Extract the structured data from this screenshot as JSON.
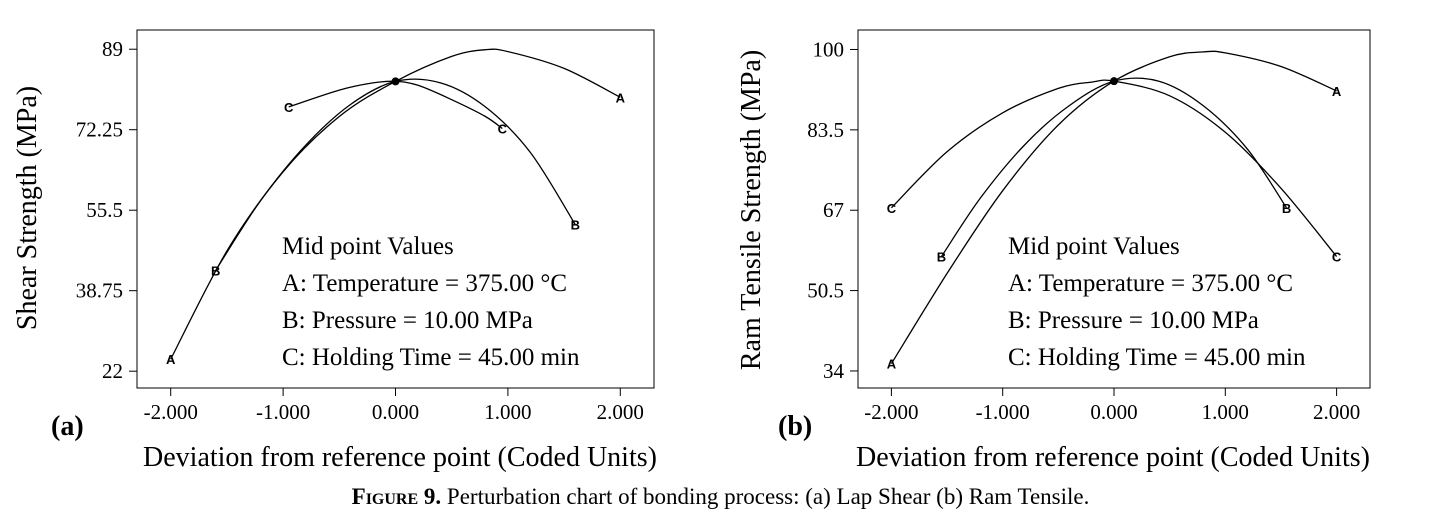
{
  "caption": {
    "label": "Figure 9.",
    "text": "Perturbation chart of bonding process: (a) Lap Shear (b) Ram Tensile."
  },
  "chart_data": [
    {
      "type": "line",
      "panel_label": "(a)",
      "title": "",
      "xlabel": "Deviation from  reference point (Coded Units)",
      "ylabel": "Shear Strength (MPa)",
      "xlim": [
        -2.3,
        2.3
      ],
      "ylim": [
        18.5,
        93
      ],
      "x_ticks": [
        -2,
        -1,
        0,
        1,
        2
      ],
      "x_tick_labels": [
        "-2.000",
        "-1.000",
        "0.000",
        "1.000",
        "2.000"
      ],
      "y_ticks": [
        22,
        38.75,
        55.5,
        72.25,
        89
      ],
      "y_tick_labels": [
        "22",
        "38.75",
        "55.5",
        "72.25",
        "89"
      ],
      "center": {
        "x": 0,
        "y": 82.3
      },
      "annotations": [
        "Mid point Values",
        "A: Temperature = 375.00 °C",
        "B: Pressure = 10.00 MPa",
        "C: Holding Time = 45.00 min"
      ],
      "series": [
        {
          "label": "A",
          "x": [
            -2.0,
            -1.5,
            -1.0,
            -0.5,
            0.0,
            0.5,
            0.8,
            1.0,
            1.5,
            2.0
          ],
          "y": [
            24.5,
            47.0,
            63.5,
            75.0,
            82.3,
            87.5,
            88.9,
            88.5,
            85.0,
            79.0
          ],
          "label_points": [
            [
              -2.0,
              24.5
            ],
            [
              2.0,
              79.0
            ]
          ]
        },
        {
          "label": "B",
          "x": [
            -1.6,
            -1.2,
            -0.8,
            -0.4,
            0.0,
            0.4,
            0.8,
            1.2,
            1.6
          ],
          "y": [
            43.0,
            57.5,
            69.0,
            77.5,
            82.3,
            82.0,
            77.0,
            67.5,
            52.5
          ],
          "label_points": [
            [
              -1.6,
              43.0
            ],
            [
              1.6,
              52.5
            ]
          ]
        },
        {
          "label": "C",
          "x": [
            -0.95,
            -0.5,
            -0.2,
            0.0,
            0.2,
            0.5,
            0.8,
            0.95
          ],
          "y": [
            77.0,
            80.5,
            82.0,
            82.3,
            81.5,
            78.5,
            75.0,
            72.5
          ],
          "label_points": [
            [
              -0.95,
              77.0
            ],
            [
              0.95,
              72.5
            ]
          ]
        }
      ]
    },
    {
      "type": "line",
      "panel_label": "(b)",
      "title": "",
      "xlabel": "Deviation from  reference point (Coded Units)",
      "ylabel": "Ram Tensile Strength (MPa)",
      "xlim": [
        -2.3,
        2.3
      ],
      "ylim": [
        30.5,
        104
      ],
      "x_ticks": [
        -2,
        -1,
        0,
        1,
        2
      ],
      "x_tick_labels": [
        "-2.000",
        "-1.000",
        "0.000",
        "1.000",
        "2.000"
      ],
      "y_ticks": [
        34,
        50.5,
        67,
        83.5,
        100
      ],
      "y_tick_labels": [
        "34",
        "50.5",
        "67",
        "83.5",
        "100"
      ],
      "center": {
        "x": 0,
        "y": 93.5
      },
      "annotations": [
        "Mid point Values",
        "A: Temperature = 375.00 °C",
        "B: Pressure = 10.00 MPa",
        "C: Holding Time = 45.00 min"
      ],
      "series": [
        {
          "label": "A",
          "x": [
            -2.0,
            -1.5,
            -1.0,
            -0.5,
            0.0,
            0.5,
            0.8,
            1.0,
            1.5,
            2.0
          ],
          "y": [
            35.5,
            54.0,
            71.0,
            84.5,
            93.5,
            98.5,
            99.5,
            99.3,
            96.5,
            91.5
          ],
          "label_points": [
            [
              -2.0,
              35.5
            ],
            [
              2.0,
              91.5
            ]
          ]
        },
        {
          "label": "B",
          "x": [
            -1.55,
            -1.2,
            -0.8,
            -0.4,
            0.0,
            0.4,
            0.8,
            1.2,
            1.55
          ],
          "y": [
            57.5,
            69.5,
            80.5,
            88.5,
            93.5,
            93.5,
            88.5,
            79.5,
            67.5
          ],
          "label_points": [
            [
              -1.55,
              57.5
            ],
            [
              1.55,
              67.5
            ]
          ]
        },
        {
          "label": "C",
          "x": [
            -2.0,
            -1.5,
            -1.0,
            -0.5,
            -0.2,
            0.0,
            0.5,
            1.0,
            1.5,
            2.0
          ],
          "y": [
            67.5,
            79.0,
            87.0,
            92.0,
            93.3,
            93.5,
            90.5,
            83.0,
            71.5,
            57.5
          ],
          "label_points": [
            [
              -2.0,
              67.5
            ],
            [
              2.0,
              57.5
            ]
          ]
        }
      ]
    }
  ]
}
